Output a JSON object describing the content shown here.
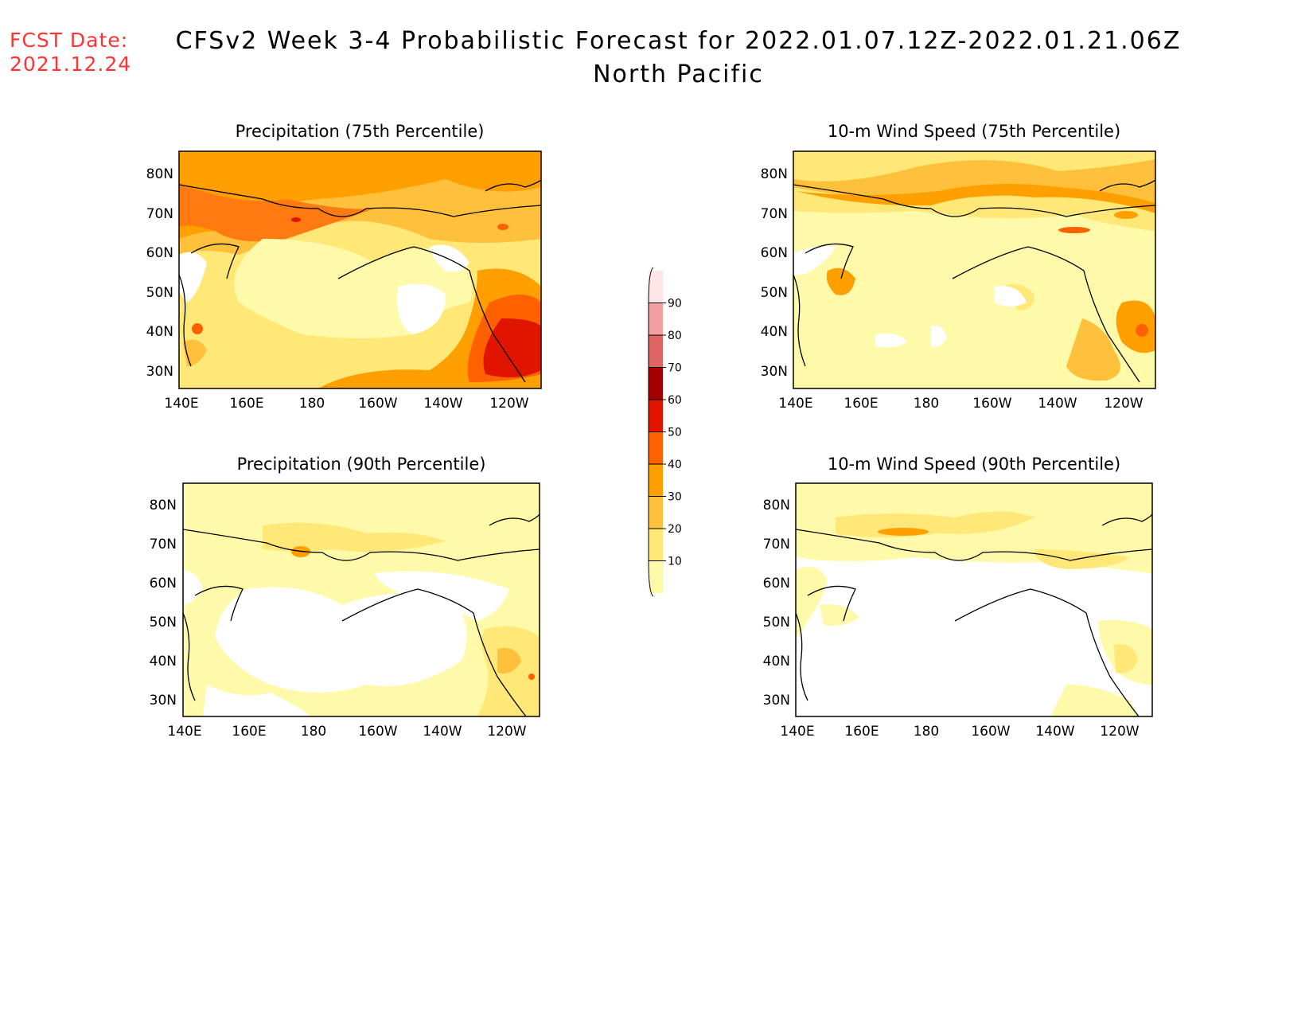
{
  "header": {
    "fcst_label": "FCST Date:",
    "fcst_date": "2021.12.24",
    "title": "CFSv2 Week 3-4 Probabilistic Forecast for 2022.01.07.12Z-2022.01.21.06Z",
    "subtitle": "North Pacific"
  },
  "lon_ticks": [
    "140E",
    "160E",
    "180",
    "160W",
    "140W",
    "120W"
  ],
  "lat_ticks": [
    "80N",
    "70N",
    "60N",
    "50N",
    "40N",
    "30N"
  ],
  "panels": [
    {
      "title": "Precipitation (75th Percentile)"
    },
    {
      "title": "10-m Wind Speed (75th Percentile)"
    },
    {
      "title": "Precipitation (90th Percentile)"
    },
    {
      "title": "10-m Wind Speed (90th Percentile)"
    }
  ],
  "colorbar": {
    "levels": [
      "10",
      "20",
      "30",
      "40",
      "50",
      "60",
      "70",
      "80",
      "90"
    ],
    "colors": [
      "#fffaaa",
      "#ffe878",
      "#ffc03c",
      "#ffa000",
      "#ff6000",
      "#e11400",
      "#a50000",
      "#e16464",
      "#f5a0a0",
      "#ffe6e6"
    ]
  }
}
